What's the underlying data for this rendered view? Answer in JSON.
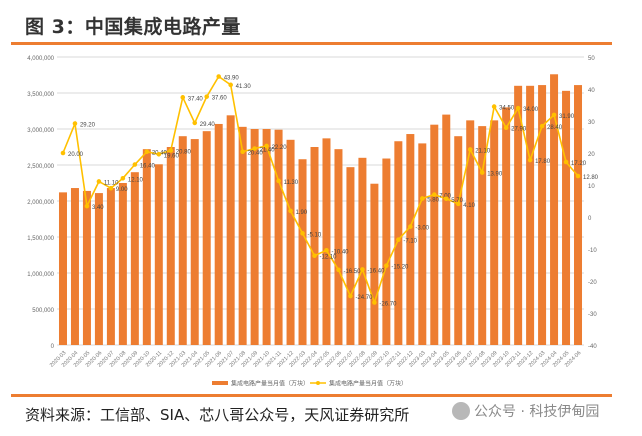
{
  "title": "图 3：中国集成电路产量",
  "source": "资料来源：工信部、SIA、芯八哥公众号，天风证券研究所",
  "watermark": "公众号 · 科技伊甸园",
  "colors": {
    "bar": "#ed7d31",
    "line": "#ffc000",
    "accent": "#ed7d31",
    "grid": "#d9d9d9"
  },
  "chart_data": {
    "type": "bar+line",
    "title": "中国集成电路产量",
    "categories": [
      "2020-03",
      "2020-04",
      "2020-05",
      "2020-06",
      "2020-07",
      "2020-08",
      "2020-09",
      "2020-10",
      "2020-11",
      "2020-12",
      "2021-03",
      "2021-04",
      "2021-05",
      "2021-06",
      "2021-07",
      "2021-08",
      "2021-09",
      "2021-10",
      "2021-11",
      "2021-12",
      "2022-03",
      "2022-04",
      "2022-05",
      "2022-06",
      "2022-07",
      "2022-08",
      "2022-09",
      "2022-10",
      "2022-11",
      "2022-12",
      "2023-03",
      "2023-04",
      "2023-05",
      "2023-06",
      "2023-07",
      "2023-08",
      "2023-09",
      "2023-10",
      "2023-11",
      "2023-12",
      "2024-03",
      "2024-04",
      "2024-05",
      "2024-06"
    ],
    "series": [
      {
        "name": "集成电路产量当月值（万块）",
        "type": "bar",
        "axis": "left",
        "values": [
          2120000,
          2180000,
          2140000,
          2110000,
          2180000,
          2250000,
          2400000,
          2720000,
          2510000,
          2750000,
          2900000,
          2860000,
          2970000,
          3070000,
          3190000,
          3030000,
          3000000,
          3000000,
          2990000,
          2850000,
          2580000,
          2750000,
          2870000,
          2720000,
          2470000,
          2600000,
          2240000,
          2590000,
          2830000,
          2930000,
          2800000,
          3060000,
          3200000,
          2900000,
          3120000,
          3040000,
          3120000,
          3300000,
          3600000,
          3600000,
          3610000,
          3760000,
          3530000,
          3610000
        ]
      },
      {
        "name": "集成电路产量当月值（万块）",
        "type": "line",
        "axis": "right",
        "values": [
          20.0,
          29.2,
          3.4,
          11.1,
          9.0,
          12.1,
          16.4,
          20.4,
          19.6,
          20.8,
          37.4,
          29.4,
          37.6,
          43.9,
          41.3,
          20.4,
          21.4,
          22.2,
          11.3,
          1.9,
          -5.1,
          -12.1,
          -10.4,
          -16.5,
          -24.7,
          -16.4,
          -26.7,
          -15.2,
          -7.1,
          -3.0,
          5.8,
          7.0,
          5.7,
          4.1,
          21.1,
          13.9,
          34.5,
          27.9,
          34.0,
          17.8,
          28.4,
          31.9,
          17.2,
          12.8
        ],
        "labels": [
          "20.00",
          "29.20",
          "3.40",
          "11.10",
          "9.00",
          "12.10",
          "16.40",
          "20.40",
          "19.60",
          "20.80",
          "37.40",
          "29.40",
          "37.60",
          "43.90",
          "41.30",
          "20.40",
          "21.40",
          "22.20",
          "11.30",
          "1.90",
          "-5.10",
          "-12.10",
          "-10.40",
          "-16.50",
          "-24.70",
          "-16.40",
          "-26.70",
          "-15.20",
          "-7.10",
          "-3.00",
          "5.80",
          "7.00",
          "5.70",
          "4.10",
          "21.10",
          "13.90",
          "34.50",
          "27.90",
          "34.00",
          "17.80",
          "28.40",
          "31.90",
          "17.20",
          "12.80"
        ]
      }
    ],
    "left_axis": {
      "range": [
        0,
        4000000
      ],
      "ticks": [
        "0",
        "500,000",
        "1,000,000",
        "1,500,000",
        "2,000,000",
        "2,500,000",
        "3,000,000",
        "3,500,000",
        "4,000,000"
      ]
    },
    "right_axis": {
      "range": [
        -40,
        50
      ],
      "ticks": [
        "-40",
        "-30",
        "-20",
        "-10",
        "0",
        "10",
        "20",
        "30",
        "40",
        "50"
      ]
    },
    "grid": true,
    "legend_position": "bottom"
  }
}
